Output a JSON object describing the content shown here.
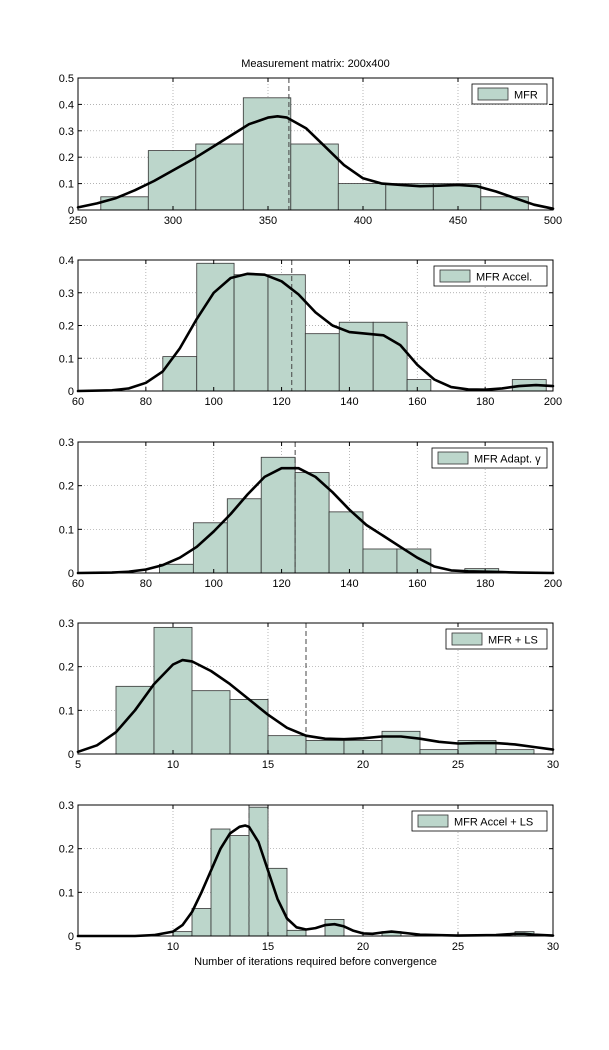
{
  "figure": {
    "title": "Measurement matrix: 200x400",
    "xlabel": "Number of iterations required before convergence",
    "bar_fill": "#bcd6cb",
    "bar_edge": "#333333",
    "curve_color": "#000000",
    "grid_color": "#9a9a9a"
  },
  "chart_data": [
    {
      "type": "bar",
      "legend": "MFR",
      "legend_position": "top-right",
      "xlim": [
        250,
        500
      ],
      "ylim": [
        0,
        0.5
      ],
      "xticks": [
        250,
        300,
        350,
        400,
        450,
        500
      ],
      "yticks": [
        0,
        0.1,
        0.2,
        0.3,
        0.4,
        0.5
      ],
      "bins": [
        {
          "from": 262,
          "to": 287,
          "value": 0.05
        },
        {
          "from": 287,
          "to": 312,
          "value": 0.225
        },
        {
          "from": 312,
          "to": 337,
          "value": 0.25
        },
        {
          "from": 337,
          "to": 362,
          "value": 0.425
        },
        {
          "from": 362,
          "to": 387,
          "value": 0.25
        },
        {
          "from": 387,
          "to": 412,
          "value": 0.1
        },
        {
          "from": 412,
          "to": 437,
          "value": 0.1
        },
        {
          "from": 437,
          "to": 462,
          "value": 0.1
        },
        {
          "from": 462,
          "to": 487,
          "value": 0.05
        }
      ],
      "mean_line": 361,
      "density_curve": [
        [
          250,
          0.01
        ],
        [
          260,
          0.025
        ],
        [
          270,
          0.045
        ],
        [
          280,
          0.075
        ],
        [
          290,
          0.11
        ],
        [
          300,
          0.15
        ],
        [
          310,
          0.19
        ],
        [
          320,
          0.235
        ],
        [
          330,
          0.28
        ],
        [
          340,
          0.325
        ],
        [
          350,
          0.35
        ],
        [
          355,
          0.355
        ],
        [
          360,
          0.35
        ],
        [
          370,
          0.31
        ],
        [
          380,
          0.24
        ],
        [
          390,
          0.17
        ],
        [
          400,
          0.12
        ],
        [
          410,
          0.1
        ],
        [
          420,
          0.095
        ],
        [
          430,
          0.09
        ],
        [
          440,
          0.092
        ],
        [
          450,
          0.095
        ],
        [
          460,
          0.09
        ],
        [
          470,
          0.07
        ],
        [
          480,
          0.045
        ],
        [
          490,
          0.02
        ],
        [
          500,
          0.005
        ]
      ]
    },
    {
      "type": "bar",
      "legend": "MFR Accel.",
      "legend_position": "top-right",
      "xlim": [
        60,
        200
      ],
      "ylim": [
        0,
        0.4
      ],
      "xticks": [
        60,
        80,
        100,
        120,
        140,
        160,
        180,
        200
      ],
      "yticks": [
        0,
        0.1,
        0.2,
        0.3,
        0.4
      ],
      "bins": [
        {
          "from": 85,
          "to": 95,
          "value": 0.105
        },
        {
          "from": 95,
          "to": 106,
          "value": 0.39
        },
        {
          "from": 106,
          "to": 116,
          "value": 0.355
        },
        {
          "from": 116,
          "to": 127,
          "value": 0.355
        },
        {
          "from": 127,
          "to": 137,
          "value": 0.175
        },
        {
          "from": 137,
          "to": 147,
          "value": 0.21
        },
        {
          "from": 147,
          "to": 157,
          "value": 0.21
        },
        {
          "from": 157,
          "to": 164,
          "value": 0.035
        },
        {
          "from": 188,
          "to": 198,
          "value": 0.035
        }
      ],
      "mean_line": 123,
      "density_curve": [
        [
          60,
          0
        ],
        [
          70,
          0.002
        ],
        [
          75,
          0.008
        ],
        [
          80,
          0.025
        ],
        [
          85,
          0.06
        ],
        [
          90,
          0.13
        ],
        [
          95,
          0.22
        ],
        [
          100,
          0.3
        ],
        [
          105,
          0.345
        ],
        [
          110,
          0.358
        ],
        [
          115,
          0.355
        ],
        [
          120,
          0.335
        ],
        [
          125,
          0.295
        ],
        [
          130,
          0.24
        ],
        [
          135,
          0.2
        ],
        [
          140,
          0.18
        ],
        [
          145,
          0.175
        ],
        [
          150,
          0.17
        ],
        [
          155,
          0.14
        ],
        [
          160,
          0.08
        ],
        [
          165,
          0.035
        ],
        [
          170,
          0.012
        ],
        [
          175,
          0.005
        ],
        [
          180,
          0.004
        ],
        [
          185,
          0.008
        ],
        [
          190,
          0.015
        ],
        [
          195,
          0.018
        ],
        [
          200,
          0.015
        ]
      ]
    },
    {
      "type": "bar",
      "legend": "MFR Adapt. γ",
      "legend_position": "top-right",
      "xlim": [
        60,
        200
      ],
      "ylim": [
        0,
        0.3
      ],
      "xticks": [
        60,
        80,
        100,
        120,
        140,
        160,
        180,
        200
      ],
      "yticks": [
        0,
        0.1,
        0.2,
        0.3
      ],
      "bins": [
        {
          "from": 84,
          "to": 94,
          "value": 0.02
        },
        {
          "from": 94,
          "to": 104,
          "value": 0.115
        },
        {
          "from": 104,
          "to": 114,
          "value": 0.17
        },
        {
          "from": 114,
          "to": 124,
          "value": 0.265
        },
        {
          "from": 124,
          "to": 134,
          "value": 0.23
        },
        {
          "from": 134,
          "to": 144,
          "value": 0.14
        },
        {
          "from": 144,
          "to": 154,
          "value": 0.055
        },
        {
          "from": 154,
          "to": 164,
          "value": 0.055
        },
        {
          "from": 174,
          "to": 184,
          "value": 0.01
        }
      ],
      "mean_line": 124,
      "density_curve": [
        [
          60,
          0
        ],
        [
          70,
          0.001
        ],
        [
          75,
          0.003
        ],
        [
          80,
          0.008
        ],
        [
          85,
          0.018
        ],
        [
          90,
          0.035
        ],
        [
          95,
          0.06
        ],
        [
          100,
          0.095
        ],
        [
          105,
          0.135
        ],
        [
          110,
          0.18
        ],
        [
          115,
          0.22
        ],
        [
          120,
          0.24
        ],
        [
          125,
          0.24
        ],
        [
          130,
          0.22
        ],
        [
          135,
          0.185
        ],
        [
          140,
          0.145
        ],
        [
          145,
          0.11
        ],
        [
          150,
          0.085
        ],
        [
          155,
          0.06
        ],
        [
          160,
          0.035
        ],
        [
          165,
          0.015
        ],
        [
          170,
          0.006
        ],
        [
          175,
          0.004
        ],
        [
          180,
          0.003
        ],
        [
          185,
          0.002
        ],
        [
          190,
          0.001
        ],
        [
          200,
          0
        ]
      ]
    },
    {
      "type": "bar",
      "legend": "MFR + LS",
      "legend_position": "top-right",
      "xlim": [
        5,
        30
      ],
      "ylim": [
        0,
        0.3
      ],
      "xticks": [
        5,
        10,
        15,
        20,
        25,
        30
      ],
      "yticks": [
        0,
        0.1,
        0.2,
        0.3
      ],
      "bins": [
        {
          "from": 7,
          "to": 9,
          "value": 0.155
        },
        {
          "from": 9,
          "to": 11,
          "value": 0.29
        },
        {
          "from": 11,
          "to": 13,
          "value": 0.145
        },
        {
          "from": 13,
          "to": 15,
          "value": 0.125
        },
        {
          "from": 15,
          "to": 17,
          "value": 0.042
        },
        {
          "from": 17,
          "to": 19,
          "value": 0.031
        },
        {
          "from": 19,
          "to": 21,
          "value": 0.031
        },
        {
          "from": 21,
          "to": 23,
          "value": 0.052
        },
        {
          "from": 23,
          "to": 25,
          "value": 0.01
        },
        {
          "from": 25,
          "to": 27,
          "value": 0.031
        },
        {
          "from": 27,
          "to": 29,
          "value": 0.01
        }
      ],
      "mean_line": 17,
      "density_curve": [
        [
          5,
          0.005
        ],
        [
          6,
          0.02
        ],
        [
          7,
          0.05
        ],
        [
          8,
          0.1
        ],
        [
          9,
          0.16
        ],
        [
          10,
          0.205
        ],
        [
          10.5,
          0.215
        ],
        [
          11,
          0.212
        ],
        [
          12,
          0.19
        ],
        [
          13,
          0.16
        ],
        [
          14,
          0.125
        ],
        [
          15,
          0.09
        ],
        [
          16,
          0.06
        ],
        [
          17,
          0.042
        ],
        [
          18,
          0.035
        ],
        [
          19,
          0.034
        ],
        [
          20,
          0.036
        ],
        [
          21,
          0.04
        ],
        [
          22,
          0.04
        ],
        [
          23,
          0.035
        ],
        [
          24,
          0.028
        ],
        [
          25,
          0.024
        ],
        [
          26,
          0.025
        ],
        [
          27,
          0.025
        ],
        [
          28,
          0.022
        ],
        [
          29,
          0.016
        ],
        [
          30,
          0.01
        ]
      ]
    },
    {
      "type": "bar",
      "legend": "MFR Accel + LS",
      "legend_position": "top-right",
      "xlim": [
        5,
        30
      ],
      "ylim": [
        0,
        0.3
      ],
      "xticks": [
        5,
        10,
        15,
        20,
        25,
        30
      ],
      "yticks": [
        0,
        0.1,
        0.2,
        0.3
      ],
      "bins": [
        {
          "from": 10,
          "to": 11,
          "value": 0.01
        },
        {
          "from": 11,
          "to": 12,
          "value": 0.063
        },
        {
          "from": 12,
          "to": 13,
          "value": 0.245
        },
        {
          "from": 13,
          "to": 14,
          "value": 0.23
        },
        {
          "from": 14,
          "to": 15,
          "value": 0.295
        },
        {
          "from": 15,
          "to": 16,
          "value": 0.155
        },
        {
          "from": 16,
          "to": 17,
          "value": 0.013
        },
        {
          "from": 18,
          "to": 19,
          "value": 0.038
        },
        {
          "from": 21,
          "to": 22,
          "value": 0.01
        },
        {
          "from": 28,
          "to": 29,
          "value": 0.01
        }
      ],
      "mean_line": 14,
      "density_curve": [
        [
          5,
          0
        ],
        [
          8,
          0
        ],
        [
          9,
          0.002
        ],
        [
          10,
          0.01
        ],
        [
          10.5,
          0.025
        ],
        [
          11,
          0.055
        ],
        [
          11.5,
          0.1
        ],
        [
          12,
          0.15
        ],
        [
          12.5,
          0.2
        ],
        [
          13,
          0.235
        ],
        [
          13.5,
          0.25
        ],
        [
          13.8,
          0.253
        ],
        [
          14,
          0.25
        ],
        [
          14.5,
          0.215
        ],
        [
          15,
          0.15
        ],
        [
          15.5,
          0.085
        ],
        [
          16,
          0.04
        ],
        [
          16.5,
          0.02
        ],
        [
          17,
          0.015
        ],
        [
          17.5,
          0.018
        ],
        [
          18,
          0.025
        ],
        [
          18.5,
          0.027
        ],
        [
          19,
          0.022
        ],
        [
          19.5,
          0.012
        ],
        [
          20,
          0.006
        ],
        [
          20.5,
          0.005
        ],
        [
          21,
          0.008
        ],
        [
          21.5,
          0.01
        ],
        [
          22,
          0.008
        ],
        [
          23,
          0.003
        ],
        [
          25,
          0.001
        ],
        [
          27,
          0.002
        ],
        [
          28,
          0.005
        ],
        [
          28.5,
          0.005
        ],
        [
          29,
          0.003
        ],
        [
          30,
          0.001
        ]
      ]
    }
  ]
}
